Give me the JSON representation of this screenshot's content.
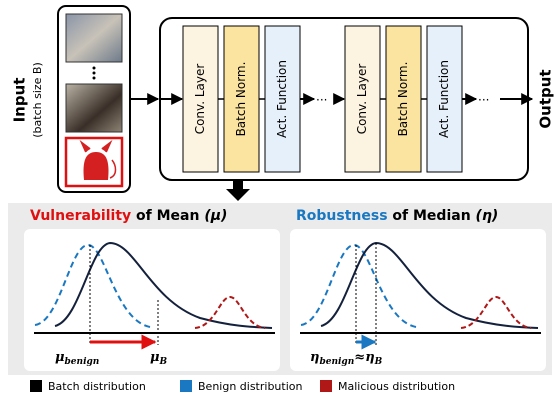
{
  "input": {
    "label": "Input",
    "batch_size": "(batch size B)"
  },
  "layers": [
    "Conv. Layer",
    "Batch Norm.",
    "Act. Function"
  ],
  "ellipsis": "...",
  "output": "Output",
  "panels": [
    {
      "title_highlight": "Vulnerability",
      "title_rest": "of Mean",
      "symbol": "(μ)",
      "labels": [
        {
          "symbol": "μ",
          "sub": "benign"
        },
        {
          "symbol": "μ",
          "sub": "B"
        }
      ]
    },
    {
      "title_highlight": "Robustness",
      "title_rest": "of Median",
      "symbol": "(η)",
      "labels": [
        {
          "symbol": "η",
          "sub": "benign"
        },
        {
          "symbol": "η",
          "sub": "B"
        }
      ],
      "relation": "≈"
    }
  ],
  "legend": [
    "Batch distribution",
    "Benign distribution",
    "Malicious distribution"
  ]
}
